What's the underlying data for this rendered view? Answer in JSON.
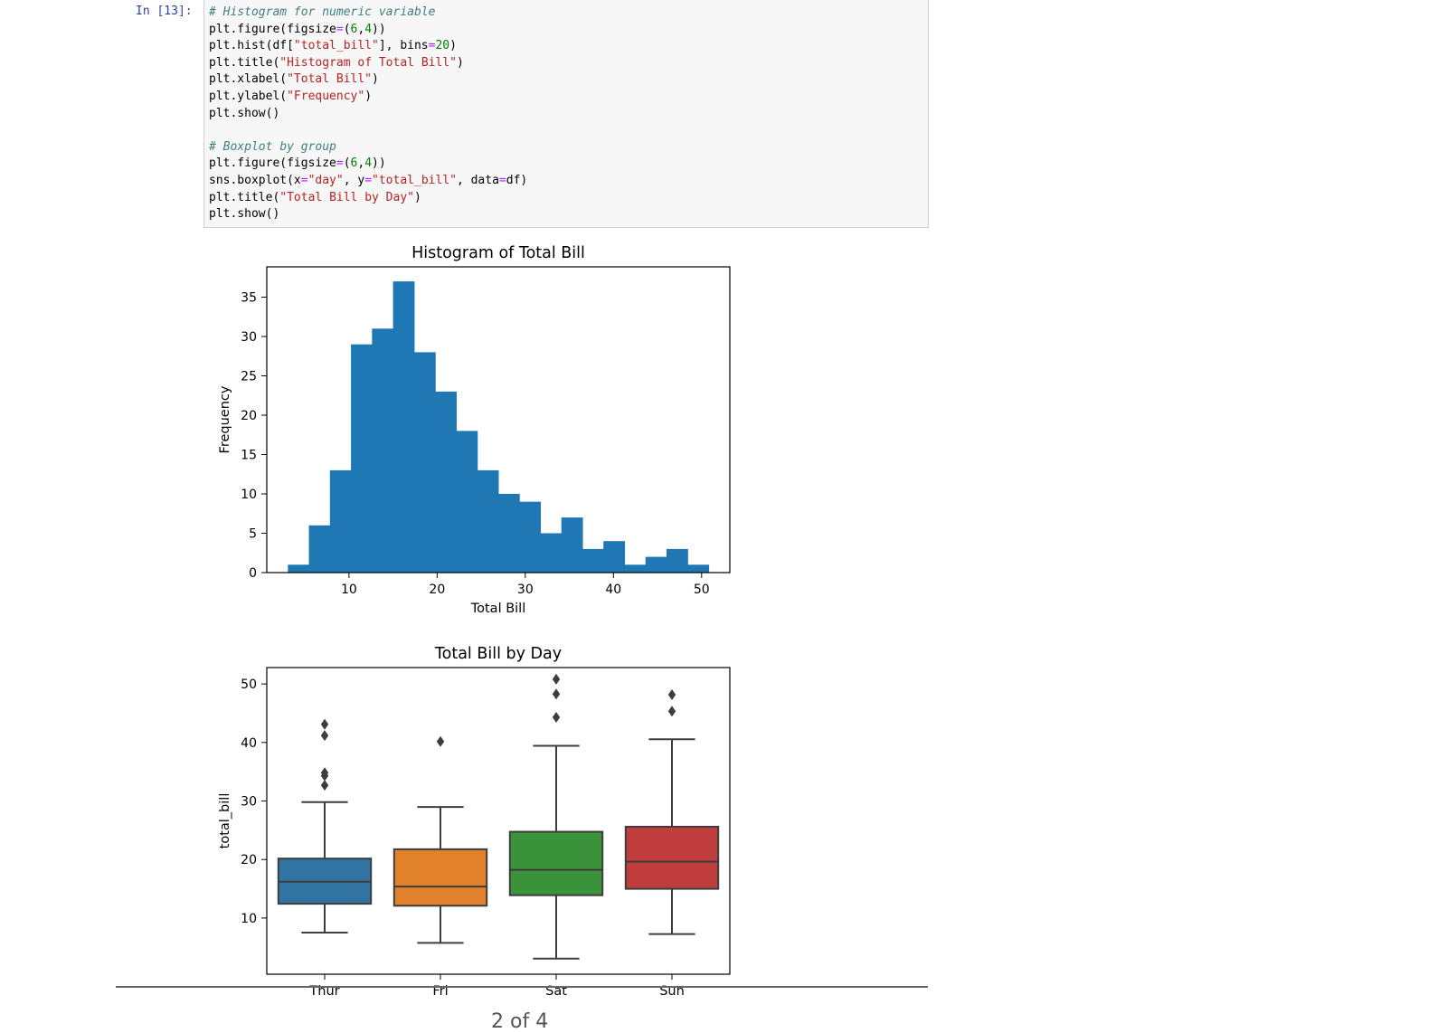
{
  "prompt": "In [13]:",
  "code_lines": [
    [
      {
        "t": "# Histogram for numeric variable",
        "c": "cm"
      }
    ],
    [
      {
        "t": "plt.figure(figsize"
      },
      {
        "t": "=",
        "c": "op"
      },
      {
        "t": "("
      },
      {
        "t": "6",
        "c": "nu"
      },
      {
        "t": ","
      },
      {
        "t": "4",
        "c": "nu"
      },
      {
        "t": "))"
      }
    ],
    [
      {
        "t": "plt.hist(df["
      },
      {
        "t": "\"total_bill\"",
        "c": "st"
      },
      {
        "t": "], bins"
      },
      {
        "t": "=",
        "c": "op"
      },
      {
        "t": "20",
        "c": "nu"
      },
      {
        "t": ")"
      }
    ],
    [
      {
        "t": "plt.title("
      },
      {
        "t": "\"Histogram of Total Bill\"",
        "c": "st"
      },
      {
        "t": ")"
      }
    ],
    [
      {
        "t": "plt.xlabel("
      },
      {
        "t": "\"Total Bill\"",
        "c": "st"
      },
      {
        "t": ")"
      }
    ],
    [
      {
        "t": "plt.ylabel("
      },
      {
        "t": "\"Frequency\"",
        "c": "st"
      },
      {
        "t": ")"
      }
    ],
    [
      {
        "t": "plt.show()"
      }
    ],
    [
      {
        "t": ""
      }
    ],
    [
      {
        "t": "# Boxplot by group",
        "c": "cm"
      }
    ],
    [
      {
        "t": "plt.figure(figsize"
      },
      {
        "t": "=",
        "c": "op"
      },
      {
        "t": "("
      },
      {
        "t": "6",
        "c": "nu"
      },
      {
        "t": ","
      },
      {
        "t": "4",
        "c": "nu"
      },
      {
        "t": "))"
      }
    ],
    [
      {
        "t": "sns.boxplot(x"
      },
      {
        "t": "=",
        "c": "op"
      },
      {
        "t": "\"day\"",
        "c": "st"
      },
      {
        "t": ", y"
      },
      {
        "t": "=",
        "c": "op"
      },
      {
        "t": "\"total_bill\"",
        "c": "st"
      },
      {
        "t": ", data"
      },
      {
        "t": "=",
        "c": "op"
      },
      {
        "t": "df)"
      }
    ],
    [
      {
        "t": "plt.title("
      },
      {
        "t": "\"Total Bill by Day\"",
        "c": "st"
      },
      {
        "t": ")"
      }
    ],
    [
      {
        "t": "plt.show()"
      }
    ]
  ],
  "page_indicator": "2 of 4",
  "chart_data": [
    {
      "type": "bar",
      "title": "Histogram of Total Bill",
      "xlabel": "Total Bill",
      "ylabel": "Frequency",
      "bin_start": 3.07,
      "bin_width": 2.386,
      "values": [
        1,
        6,
        13,
        29,
        31,
        37,
        28,
        23,
        18,
        13,
        10,
        9,
        5,
        7,
        3,
        4,
        1,
        2,
        3,
        1
      ],
      "xlim": [
        0.68,
        53.2
      ],
      "ylim": [
        0,
        38.85
      ],
      "xticks": [
        10,
        20,
        30,
        40,
        50
      ],
      "yticks": [
        0,
        5,
        10,
        15,
        20,
        25,
        30,
        35
      ],
      "color": "#1f77b4"
    },
    {
      "type": "box",
      "title": "Total Bill by Day",
      "xlabel": "",
      "ylabel": "total_bill",
      "categories": [
        "Thur",
        "Fri",
        "Sat",
        "Sun"
      ],
      "colors": [
        "#3274a1",
        "#e1812c",
        "#3a923a",
        "#c03d3e"
      ],
      "ylim": [
        0.4,
        52.8
      ],
      "yticks": [
        10,
        20,
        30,
        40,
        50
      ],
      "boxes": [
        {
          "low": 7.51,
          "q1": 12.44,
          "median": 16.2,
          "q3": 20.16,
          "high": 29.8,
          "outliers": [
            32.68,
            34.3,
            34.83,
            41.19,
            43.11
          ]
        },
        {
          "low": 5.75,
          "q1": 12.1,
          "median": 15.38,
          "q3": 21.75,
          "high": 28.97,
          "outliers": [
            40.17
          ]
        },
        {
          "low": 3.07,
          "q1": 13.9,
          "median": 18.24,
          "q3": 24.74,
          "high": 39.42,
          "outliers": [
            44.3,
            48.27,
            50.81
          ]
        },
        {
          "low": 7.25,
          "q1": 14.99,
          "median": 19.63,
          "q3": 25.6,
          "high": 40.55,
          "outliers": [
            45.35,
            48.17
          ]
        }
      ]
    }
  ]
}
